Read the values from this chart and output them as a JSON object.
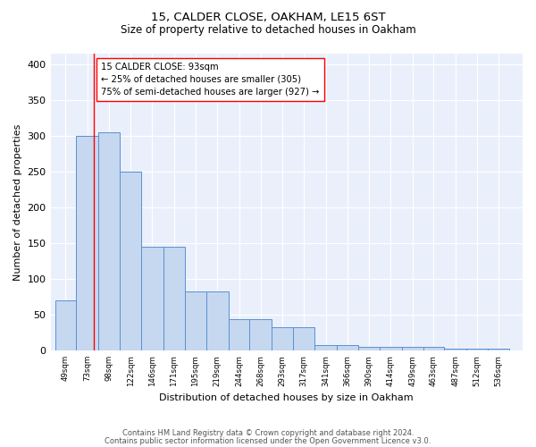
{
  "title1": "15, CALDER CLOSE, OAKHAM, LE15 6ST",
  "title2": "Size of property relative to detached houses in Oakham",
  "xlabel": "Distribution of detached houses by size in Oakham",
  "ylabel": "Number of detached properties",
  "bar_labels": [
    "49sqm",
    "73sqm",
    "98sqm",
    "122sqm",
    "146sqm",
    "171sqm",
    "195sqm",
    "219sqm",
    "244sqm",
    "268sqm",
    "293sqm",
    "317sqm",
    "341sqm",
    "366sqm",
    "390sqm",
    "414sqm",
    "439sqm",
    "463sqm",
    "487sqm",
    "512sqm",
    "536sqm"
  ],
  "bin_edges": [
    49,
    73,
    98,
    122,
    146,
    171,
    195,
    219,
    244,
    268,
    293,
    317,
    341,
    366,
    390,
    414,
    439,
    463,
    487,
    512,
    536,
    560
  ],
  "hist_values": [
    70,
    300,
    305,
    250,
    145,
    145,
    82,
    82,
    44,
    44,
    32,
    32,
    8,
    8,
    5,
    5,
    5,
    5,
    2,
    2,
    2
  ],
  "bar_color": "#c5d8f0",
  "bar_edge_color": "#5b8fd4",
  "red_line_x": 93,
  "annotation_text": "15 CALDER CLOSE: 93sqm\n← 25% of detached houses are smaller (305)\n75% of semi-detached houses are larger (927) →",
  "footer1": "Contains HM Land Registry data © Crown copyright and database right 2024.",
  "footer2": "Contains public sector information licensed under the Open Government Licence v3.0.",
  "ylim": [
    0,
    415
  ],
  "background_color": "#eaf0fb"
}
